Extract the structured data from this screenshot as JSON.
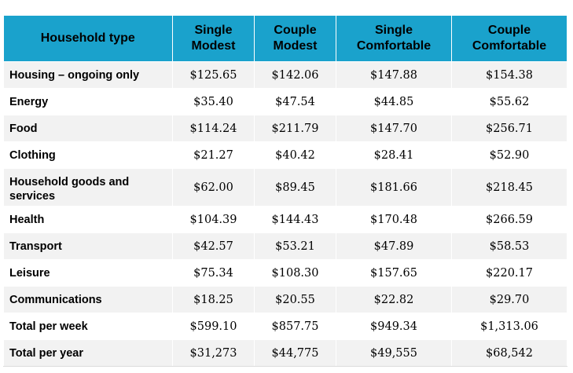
{
  "table": {
    "headers": [
      "Household type",
      "Single\nModest",
      "Couple\nModest",
      "Single\nComfortable",
      "Couple\nComfortable"
    ],
    "header_lines": [
      [
        "Household type"
      ],
      [
        "Single",
        "Modest"
      ],
      [
        "Couple",
        "Modest"
      ],
      [
        "Single",
        "Comfortable"
      ],
      [
        "Couple",
        "Comfortable"
      ]
    ],
    "rows": [
      {
        "label": "Housing – ongoing only",
        "values": [
          "$125.65",
          "$142.06",
          "$147.88",
          "$154.38"
        ]
      },
      {
        "label": "Energy",
        "values": [
          "$35.40",
          "$47.54",
          "$44.85",
          "$55.62"
        ]
      },
      {
        "label": "Food",
        "values": [
          "$114.24",
          "$211.79",
          "$147.70",
          "$256.71"
        ]
      },
      {
        "label": "Clothing",
        "values": [
          "$21.27",
          "$40.42",
          "$28.41",
          "$52.90"
        ]
      },
      {
        "label": "Household goods and services",
        "values": [
          "$62.00",
          "$89.45",
          "$181.66",
          "$218.45"
        ]
      },
      {
        "label": "Health",
        "values": [
          "$104.39",
          "$144.43",
          "$170.48",
          "$266.59"
        ]
      },
      {
        "label": "Transport",
        "values": [
          "$42.57",
          "$53.21",
          "$47.89",
          "$58.53"
        ]
      },
      {
        "label": "Leisure",
        "values": [
          "$75.34",
          "$108.30",
          "$157.65",
          "$220.17"
        ]
      },
      {
        "label": "Communications",
        "values": [
          "$18.25",
          "$20.55",
          "$22.82",
          "$29.70"
        ]
      },
      {
        "label": "Total per week",
        "values": [
          "$599.10",
          "$857.75",
          "$949.34",
          "$1,313.06"
        ]
      },
      {
        "label": "Total per year",
        "values": [
          "$31,273",
          "$44,775",
          "$49,555",
          "$68,542"
        ]
      }
    ]
  },
  "colors": {
    "header_bg": "#1aa2cc",
    "row_alt_bg": "#f2f2f2",
    "row_bg": "#ffffff"
  }
}
